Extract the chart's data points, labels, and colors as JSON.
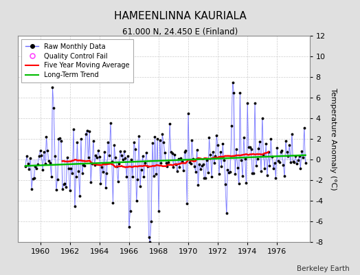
{
  "title": "HAMEENLINNA KAURIALA",
  "subtitle": "61.000 N, 24.450 E (Finland)",
  "ylabel": "Temperature Anomaly (°C)",
  "credit": "Berkeley Earth",
  "xlim": [
    1958.5,
    1978.2
  ],
  "ylim": [
    -8,
    12
  ],
  "yticks": [
    -8,
    -6,
    -4,
    -2,
    0,
    2,
    4,
    6,
    8,
    10,
    12
  ],
  "xticks": [
    1960,
    1962,
    1964,
    1966,
    1968,
    1970,
    1972,
    1974,
    1976
  ],
  "background_color": "#e0e0e0",
  "plot_bg_color": "#ffffff",
  "raw_line_color": "#6666ff",
  "raw_dot_color": "#000000",
  "moving_avg_color": "#ff0000",
  "trend_color": "#00bb00",
  "qc_fail_color": "#ff44ff",
  "grid_color": "#cccccc"
}
